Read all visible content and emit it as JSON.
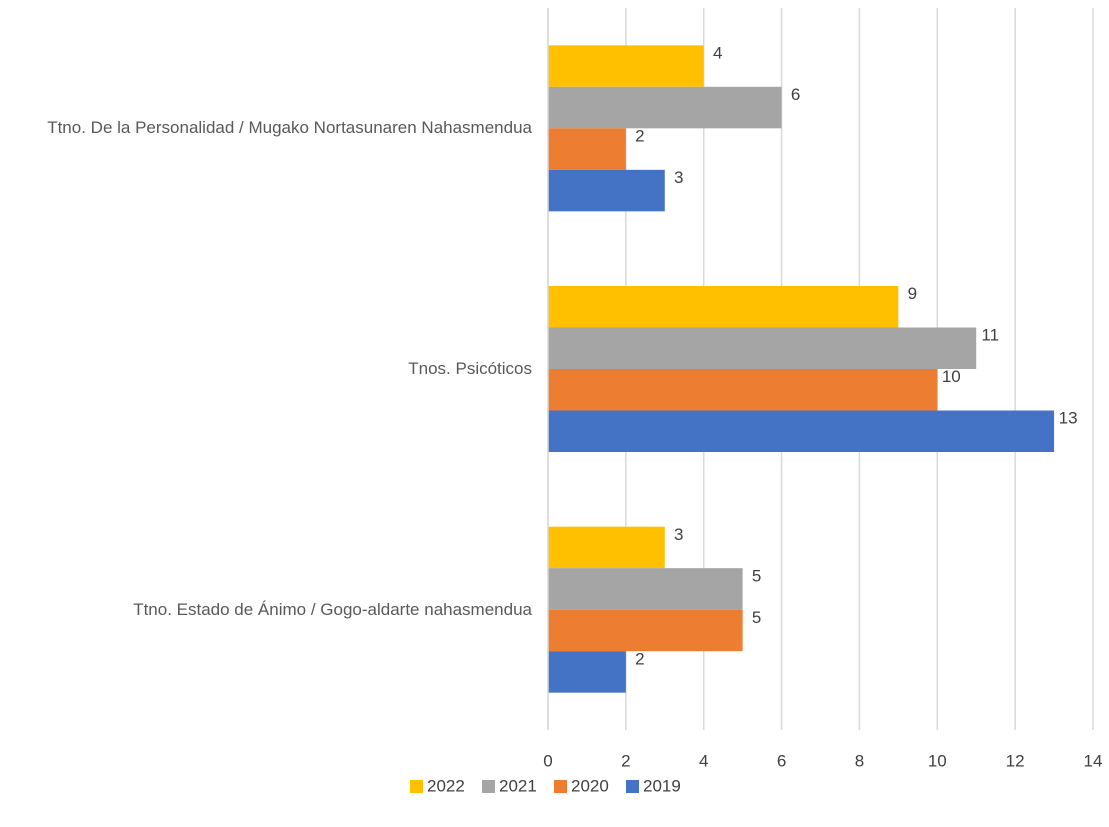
{
  "chart_data": {
    "type": "hbar",
    "categories": [
      "Ttno. De la Personalidad / Mugako Nortasunaren Nahasmendua",
      "Tnos. Psicóticos",
      "Ttno. Estado de Ánimo / Gogo-aldarte nahasmendua"
    ],
    "series": [
      {
        "name": "2022",
        "color": "#FFC000",
        "values": [
          4,
          9,
          3
        ]
      },
      {
        "name": "2021",
        "color": "#A5A5A5",
        "values": [
          6,
          11,
          5
        ]
      },
      {
        "name": "2020",
        "color": "#ED7D31",
        "values": [
          2,
          10,
          5
        ]
      },
      {
        "name": "2019",
        "color": "#4472C4",
        "values": [
          3,
          13,
          2
        ]
      }
    ],
    "xlim": [
      0,
      14
    ],
    "xticks": [
      0,
      2,
      4,
      6,
      8,
      10,
      12,
      14
    ],
    "grid": true,
    "legend": "bottom"
  }
}
